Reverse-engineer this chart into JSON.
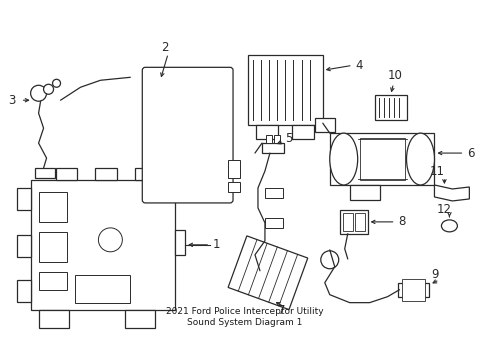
{
  "title": "2021 Ford Police Interceptor Utility\nSound System Diagram 1",
  "bg_color": "#ffffff",
  "line_color": "#2a2a2a",
  "text_color": "#1a1a1a",
  "fig_width": 4.9,
  "fig_height": 3.6,
  "dpi": 100
}
